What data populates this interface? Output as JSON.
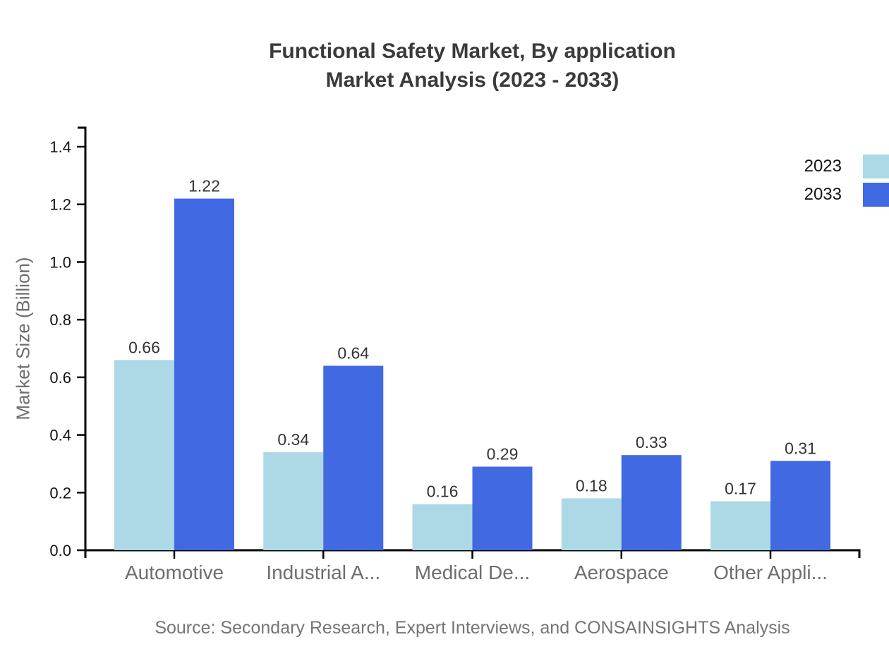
{
  "title": {
    "line1": "Functional Safety Market, By application",
    "line2": "Market Analysis (2023 - 2033)"
  },
  "source": "Source: Secondary Research, Expert Interviews, and CONSAINSIGHTS Analysis",
  "chart_data": {
    "type": "bar",
    "title": "Functional Safety Market, By application Market Analysis (2023 - 2033)",
    "categories": [
      "Automotive",
      "Industrial A...",
      "Medical De...",
      "Aerospace",
      "Other Appli..."
    ],
    "series": [
      {
        "name": "2023",
        "color": "#ADD8E6",
        "values": [
          0.66,
          0.34,
          0.16,
          0.18,
          0.17
        ]
      },
      {
        "name": "2033",
        "color": "#4169E1",
        "values": [
          1.22,
          0.64,
          0.29,
          0.33,
          0.31
        ]
      }
    ],
    "xlabel": "",
    "ylabel": "Market Size (Billion)",
    "ylim": [
      0,
      1.4
    ],
    "yticks": [
      "0.0",
      "0.2",
      "0.4",
      "0.6",
      "0.8",
      "1.0",
      "1.2",
      "1.4"
    ],
    "grid": false,
    "legend_position": "top-right",
    "value_labels": true
  },
  "colors": {
    "axis": "#000000",
    "tick_label": "#111111",
    "value_label": "#333333",
    "category_label": "#6e6e6e",
    "title_text": "#3a3a3a",
    "muted_text": "#757575"
  }
}
